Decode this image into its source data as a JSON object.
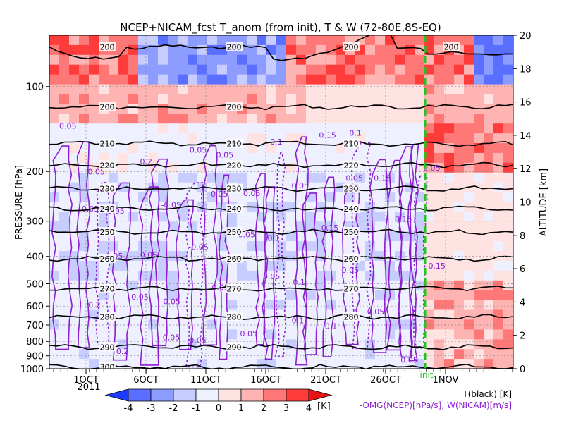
{
  "chart_data": {
    "type": "heatmap",
    "title": "NCEP+NICAM_fcst T_anom (from init), T & W  (72-80E,8S-EQ)",
    "ylabel_left": "PRESSURE [hPa]",
    "ylabel_right": "ALTITUDE [km]",
    "left_ticks": [
      "100",
      "200",
      "300",
      "400",
      "500",
      "600",
      "700",
      "800",
      "900",
      "1000"
    ],
    "right_ticks": [
      "0",
      "2",
      "4",
      "6",
      "8",
      "10",
      "12",
      "14",
      "16",
      "18",
      "20"
    ],
    "x_ticks": [
      "1OCT",
      "6OCT",
      "11OCT",
      "16OCT",
      "21OCT",
      "26OCT",
      "1NOV"
    ],
    "year_label": "2011",
    "init_label": "init",
    "colorbar": {
      "ticks": [
        "-4",
        "-3",
        "-2",
        "-1",
        "0",
        "1",
        "2",
        "3",
        "4"
      ],
      "unit": "[K]",
      "colors": [
        "#1e3cff",
        "#5a6eff",
        "#8c9cff",
        "#c8cdff",
        "#eef0ff",
        "#ffe2e2",
        "#ffb4b4",
        "#ff7878",
        "#ff3c3c",
        "#e61414"
      ]
    },
    "legend_t": "T(black) [K]",
    "legend_w": "-OMG(NCEP)[hPa/s], W(NICAM)[m/s]",
    "temperature_contours": [
      {
        "value": "200",
        "level_km": 19.3
      },
      {
        "value": "200",
        "level_km": 15.7
      },
      {
        "value": "210",
        "level_km": 13.5
      },
      {
        "value": "220",
        "level_km": 12.2
      },
      {
        "value": "230",
        "level_km": 10.8
      },
      {
        "value": "240",
        "level_km": 9.6
      },
      {
        "value": "250",
        "level_km": 8.2
      },
      {
        "value": "260",
        "level_km": 6.6
      },
      {
        "value": "270",
        "level_km": 4.8
      },
      {
        "value": "280",
        "level_km": 3.1
      },
      {
        "value": "290",
        "level_km": 1.3
      },
      {
        "value": "300",
        "level_km": 0.1
      }
    ],
    "t_contour_labels": [
      "200",
      "200",
      "200",
      "200",
      "200",
      "200",
      "210",
      "210",
      "210",
      "220",
      "220",
      "220",
      "230",
      "230",
      "230",
      "240",
      "240",
      "240",
      "250",
      "250",
      "250",
      "260",
      "260",
      "260",
      "270",
      "270",
      "270",
      "280",
      "280",
      "280",
      "290",
      "290",
      "300"
    ],
    "w_contour_labels": [
      "0.05",
      "0.05",
      "0.05",
      "0.05",
      "0.05",
      "0.05",
      "0.05",
      "0.05",
      "0.1",
      "0.1",
      "0.1",
      "0.1",
      "0.15",
      "0.15",
      "0.15",
      "0.2",
      "0.2",
      "0.2",
      "-0.05",
      "-0.05",
      "-0.05",
      "0.05",
      "0.1",
      "0.05",
      "0.15",
      "0.05",
      "0.05",
      "0.05",
      "0.05",
      "0.05",
      "0.05",
      "0.05",
      "0.05",
      "0.05",
      "0.05",
      "0.05",
      "0.05",
      "0.1",
      "0.15",
      "0.05"
    ]
  }
}
